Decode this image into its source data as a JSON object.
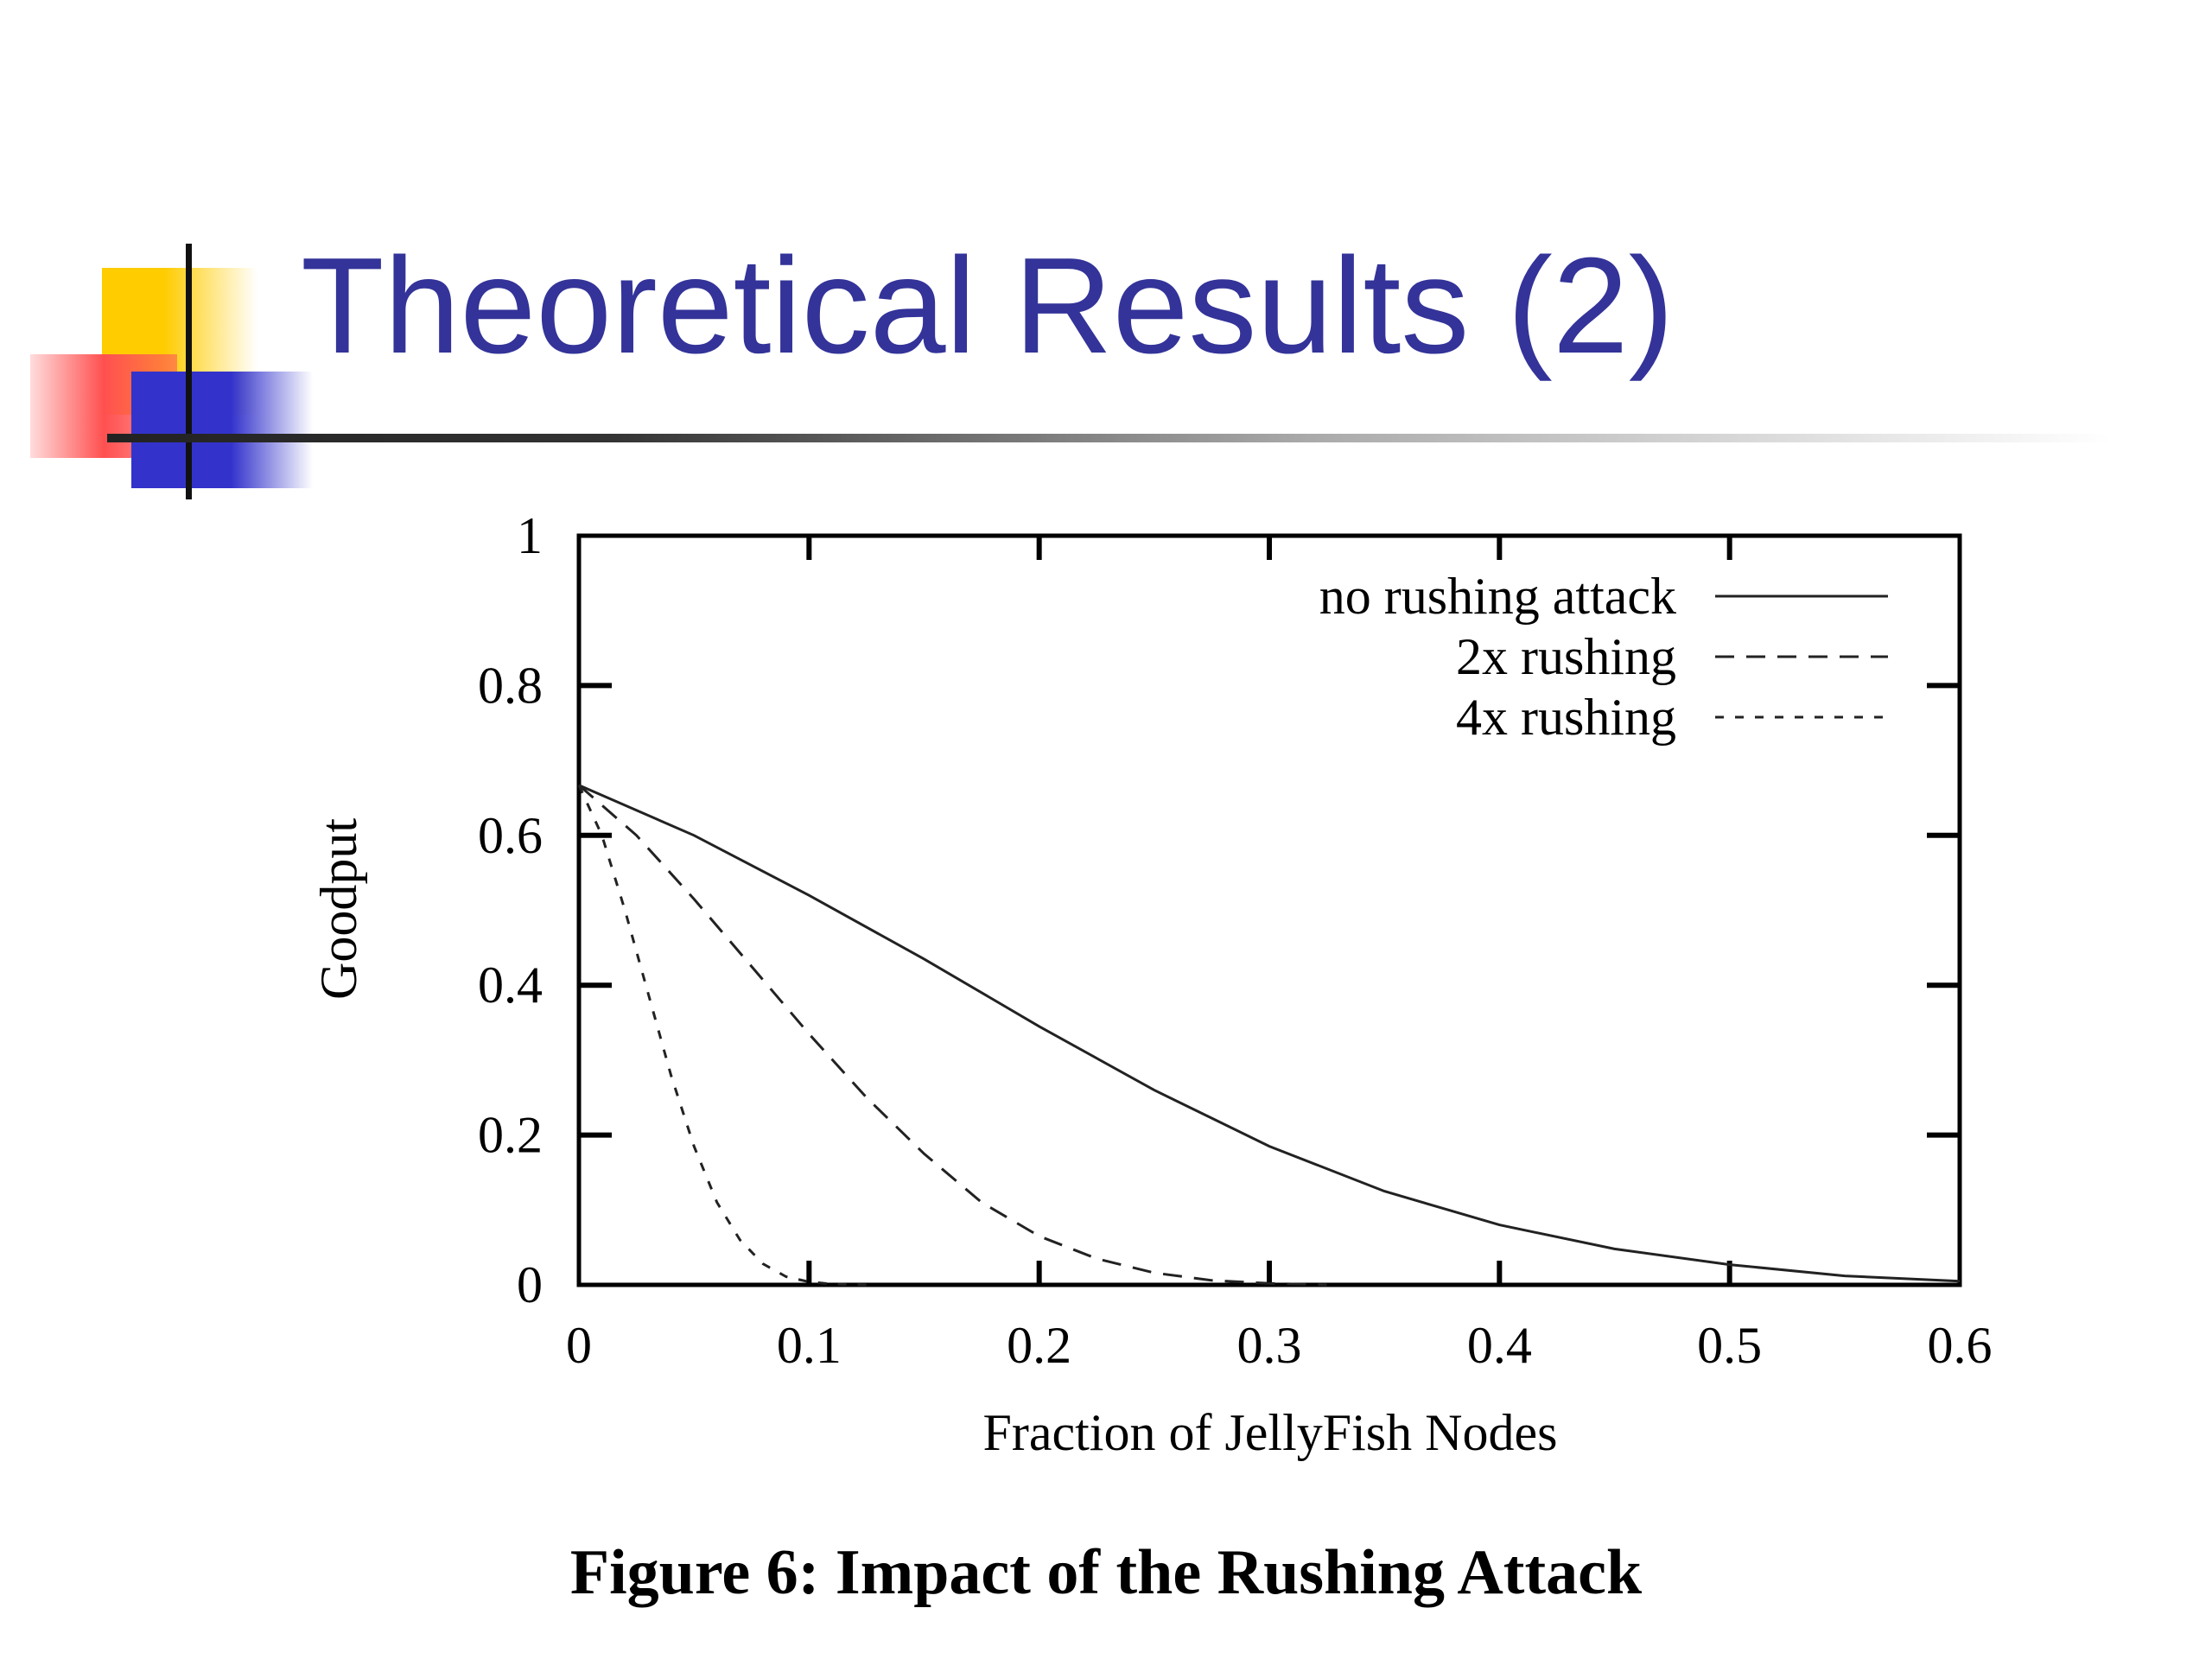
{
  "slide": {
    "title": "Theoretical Results (2)",
    "caption": "Figure 6: Impact of the Rushing Attack",
    "colors": {
      "title": "#333399",
      "deco_yellow": "#FFCC00",
      "deco_red": "#FF5050",
      "deco_blue": "#3333CC"
    }
  },
  "chart_data": {
    "type": "line",
    "title": "",
    "xlabel": "Fraction of JellyFish Nodes",
    "ylabel": "Goodput",
    "xlim": [
      0,
      0.6
    ],
    "ylim": [
      0,
      1
    ],
    "x_ticks": [
      "0",
      "0.1",
      "0.2",
      "0.3",
      "0.4",
      "0.5",
      "0.6"
    ],
    "y_ticks": [
      "0",
      "0.2",
      "0.4",
      "0.6",
      "0.8",
      "1"
    ],
    "grid": false,
    "legend_position": "top-right",
    "series": [
      {
        "name": "no rushing attack",
        "style": "solid",
        "points": [
          [
            0,
            0.667
          ],
          [
            0.05,
            0.6
          ],
          [
            0.1,
            0.52
          ],
          [
            0.15,
            0.435
          ],
          [
            0.2,
            0.345
          ],
          [
            0.25,
            0.26
          ],
          [
            0.3,
            0.185
          ],
          [
            0.35,
            0.125
          ],
          [
            0.4,
            0.08
          ],
          [
            0.45,
            0.048
          ],
          [
            0.5,
            0.027
          ],
          [
            0.55,
            0.012
          ],
          [
            0.6,
            0.005
          ]
        ]
      },
      {
        "name": "2x rushing",
        "style": "dashed",
        "points": [
          [
            0,
            0.667
          ],
          [
            0.025,
            0.6
          ],
          [
            0.05,
            0.515
          ],
          [
            0.075,
            0.425
          ],
          [
            0.1,
            0.335
          ],
          [
            0.125,
            0.25
          ],
          [
            0.15,
            0.175
          ],
          [
            0.175,
            0.11
          ],
          [
            0.2,
            0.065
          ],
          [
            0.225,
            0.035
          ],
          [
            0.25,
            0.016
          ],
          [
            0.275,
            0.006
          ],
          [
            0.3,
            0.002
          ],
          [
            0.325,
            0.0
          ]
        ]
      },
      {
        "name": "4x rushing",
        "style": "dotted",
        "points": [
          [
            0,
            0.667
          ],
          [
            0.01,
            0.6
          ],
          [
            0.02,
            0.5
          ],
          [
            0.03,
            0.39
          ],
          [
            0.04,
            0.28
          ],
          [
            0.05,
            0.185
          ],
          [
            0.06,
            0.11
          ],
          [
            0.07,
            0.06
          ],
          [
            0.08,
            0.028
          ],
          [
            0.09,
            0.011
          ],
          [
            0.1,
            0.004
          ],
          [
            0.11,
            0.001
          ],
          [
            0.125,
            0.0
          ]
        ]
      }
    ]
  }
}
